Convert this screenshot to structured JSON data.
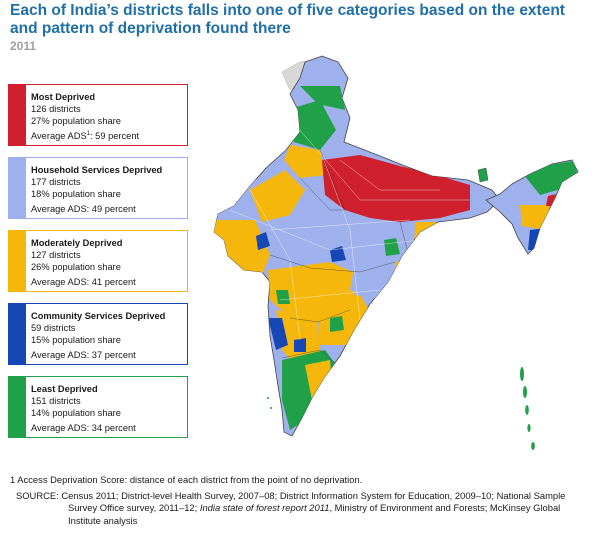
{
  "title": "Each of India’s districts falls into one of five categories based on the extent and pattern of deprivation found there",
  "subtitle": "2011",
  "legend": [
    {
      "name": "Most Deprived",
      "districts": "126 districts",
      "pop": "27% population share",
      "ads_pre": "Average ADS",
      "ads_sup": "1",
      "ads_post": ": 59 percent",
      "color": "#d0202e"
    },
    {
      "name": "Household Services Deprived",
      "districts": "177 districts",
      "pop": "18% population share",
      "ads_pre": "Average ADS: 49 percent",
      "ads_sup": "",
      "ads_post": "",
      "color": "#9fb1ec"
    },
    {
      "name": "Moderately Deprived",
      "districts": "127 districts",
      "pop": "26% population share",
      "ads_pre": "Average ADS: 41 percent",
      "ads_sup": "",
      "ads_post": "",
      "color": "#f5b70c"
    },
    {
      "name": "Community Services Deprived",
      "districts": "59 districts",
      "pop": "15% population share",
      "ads_pre": "Average ADS: 37 percent",
      "ads_sup": "",
      "ads_post": "",
      "color": "#1747b5"
    },
    {
      "name": "Least Deprived",
      "districts": "151 districts",
      "pop": "14% population share",
      "ads_pre": "Average ADS: 34 percent",
      "ads_sup": "",
      "ads_post": "",
      "color": "#20a048"
    }
  ],
  "map_colors": {
    "no_data": "#d8d8d8"
  },
  "footnote": "1  Access Deprivation Score: distance of each district from the point of no deprivation.",
  "source_prefix": "SOURCE: Census 2011; District-level Health Survey, 2007–08; District Information System for Education, 2009–10; National Sample Survey Office survey, 2011–12; ",
  "source_italic": "India state of forest report 2011",
  "source_suffix": ", Ministry of Environment and Forests; McKinsey Global Institute analysis"
}
